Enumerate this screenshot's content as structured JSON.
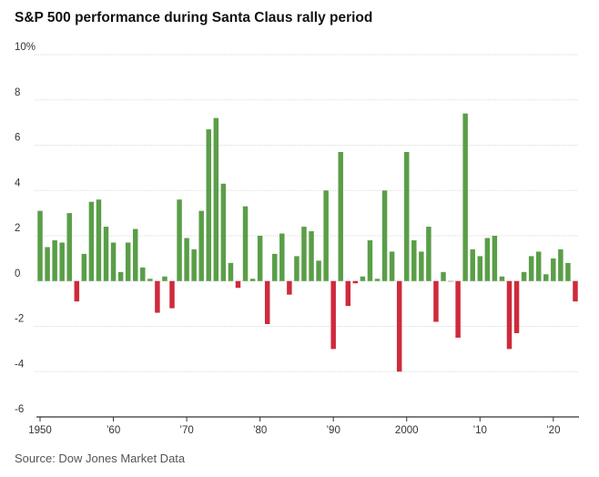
{
  "title": "S&P 500 performance during Santa Claus rally period",
  "source": "Source: Dow Jones Market Data",
  "colors": {
    "positive": "#5a9e48",
    "negative": "#cf2a3b",
    "grid": "#d9d9d9",
    "axis": "#333333"
  },
  "chart_data": {
    "type": "bar",
    "title": "S&P 500 performance during Santa Claus rally period",
    "xlabel": "",
    "ylabel": "",
    "ylim": [
      -6,
      10
    ],
    "y_ticks": [
      {
        "value": 10,
        "label": "10%"
      },
      {
        "value": 8,
        "label": "8"
      },
      {
        "value": 6,
        "label": "6"
      },
      {
        "value": 4,
        "label": "4"
      },
      {
        "value": 2,
        "label": "2"
      },
      {
        "value": 0,
        "label": "0"
      },
      {
        "value": -2,
        "label": "-2"
      },
      {
        "value": -4,
        "label": "-4"
      },
      {
        "value": -6,
        "label": "-6"
      }
    ],
    "x_range": [
      1949.5,
      2023.5
    ],
    "x_ticks": [
      {
        "value": 1950,
        "label": "1950"
      },
      {
        "value": 1960,
        "label": "’60"
      },
      {
        "value": 1970,
        "label": "’70"
      },
      {
        "value": 1980,
        "label": "’80"
      },
      {
        "value": 1990,
        "label": "’90"
      },
      {
        "value": 2000,
        "label": "2000"
      },
      {
        "value": 2010,
        "label": "’10"
      },
      {
        "value": 2020,
        "label": "’20"
      }
    ],
    "grid": true,
    "years": [
      1950,
      1951,
      1952,
      1953,
      1954,
      1955,
      1956,
      1957,
      1958,
      1959,
      1960,
      1961,
      1962,
      1963,
      1964,
      1965,
      1966,
      1967,
      1968,
      1969,
      1970,
      1971,
      1972,
      1973,
      1974,
      1975,
      1976,
      1977,
      1978,
      1979,
      1980,
      1981,
      1982,
      1983,
      1984,
      1985,
      1986,
      1987,
      1988,
      1989,
      1990,
      1991,
      1992,
      1993,
      1994,
      1995,
      1996,
      1997,
      1998,
      1999,
      2000,
      2001,
      2002,
      2003,
      2004,
      2005,
      2006,
      2007,
      2008,
      2009,
      2010,
      2011,
      2012,
      2013,
      2014,
      2015,
      2016,
      2017,
      2018,
      2019,
      2020,
      2021,
      2022,
      2023
    ],
    "values": [
      3.1,
      1.5,
      1.8,
      1.7,
      3.0,
      -0.9,
      1.2,
      3.5,
      3.6,
      2.4,
      1.7,
      0.4,
      1.7,
      2.3,
      0.6,
      0.1,
      -1.4,
      0.2,
      -1.2,
      3.6,
      1.9,
      1.4,
      3.1,
      6.7,
      7.2,
      4.3,
      0.8,
      -0.3,
      3.3,
      0.1,
      2.0,
      -1.9,
      1.2,
      2.1,
      -0.6,
      1.1,
      2.4,
      2.2,
      0.9,
      4.0,
      -3.0,
      5.7,
      -1.1,
      -0.1,
      0.2,
      1.8,
      0.1,
      4.0,
      1.3,
      -4.0,
      5.7,
      1.8,
      1.3,
      2.4,
      -1.8,
      0.4,
      0.0,
      -2.5,
      7.4,
      1.4,
      1.1,
      1.9,
      2.0,
      0.2,
      -3.0,
      -2.3,
      0.4,
      1.1,
      1.3,
      0.3,
      1.0,
      1.4,
      0.8,
      -0.9
    ]
  }
}
